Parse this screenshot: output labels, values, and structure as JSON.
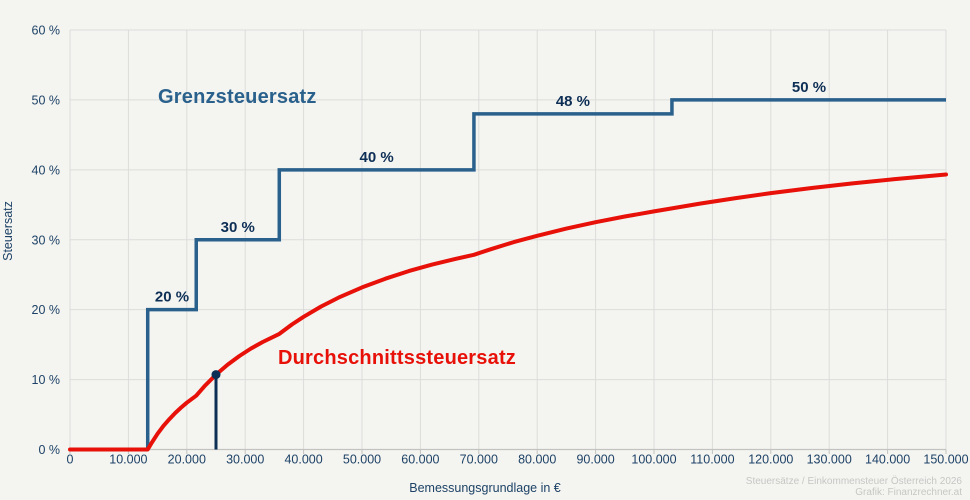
{
  "labels": {
    "marginal_series_label": "Grenzsteuersatz",
    "average_series_label": "Durchschnittssteuersatz",
    "x_axis_title": "Bemessungsgrundlage in €",
    "y_axis_title": "Steuersatz"
  },
  "footer": {
    "line1": "Steuersätze / Einkommensteuer Österreich 2026",
    "line2": "Grafik: Finanzrechner.at"
  },
  "colors": {
    "background": "#f4f4f1",
    "grid": "#dcdcda",
    "axis": "#c2c2c0",
    "tick_text": "#1d4266",
    "marginal_line": "#2a618c",
    "step_label_text": "#0e2f55",
    "average_line": "#e81109",
    "highlight": "#0e2f55"
  },
  "chart_data": {
    "type": "line",
    "xlabel": "Bemessungsgrundlage in €",
    "ylabel": "Steuersatz",
    "xlim": [
      0,
      150000
    ],
    "ylim": [
      0,
      60
    ],
    "grid": true,
    "x_ticks": [
      {
        "value": 0,
        "label": "0"
      },
      {
        "value": 10000,
        "label": "10.000"
      },
      {
        "value": 20000,
        "label": "20.000"
      },
      {
        "value": 30000,
        "label": "30.000"
      },
      {
        "value": 40000,
        "label": "40.000"
      },
      {
        "value": 50000,
        "label": "50.000"
      },
      {
        "value": 60000,
        "label": "60.000"
      },
      {
        "value": 70000,
        "label": "70.000"
      },
      {
        "value": 80000,
        "label": "80.000"
      },
      {
        "value": 90000,
        "label": "90.000"
      },
      {
        "value": 100000,
        "label": "100.000"
      },
      {
        "value": 110000,
        "label": "110.000"
      },
      {
        "value": 120000,
        "label": "120.000"
      },
      {
        "value": 130000,
        "label": "130.000"
      },
      {
        "value": 140000,
        "label": "140.000"
      },
      {
        "value": 150000,
        "label": "150.000"
      }
    ],
    "y_ticks": [
      {
        "value": 0,
        "label": "0 %"
      },
      {
        "value": 10,
        "label": "10 %"
      },
      {
        "value": 20,
        "label": "20 %"
      },
      {
        "value": 30,
        "label": "30 %"
      },
      {
        "value": 40,
        "label": "40 %"
      },
      {
        "value": 50,
        "label": "50 %"
      },
      {
        "value": 60,
        "label": "60 %"
      }
    ],
    "series": [
      {
        "name": "Grenzsteuersatz",
        "type": "step",
        "brackets": [
          {
            "from": 13308,
            "to": 21617,
            "rate": 20,
            "label": "20 %"
          },
          {
            "from": 21617,
            "to": 35836,
            "rate": 30,
            "label": "30 %"
          },
          {
            "from": 35836,
            "to": 69166,
            "rate": 40,
            "label": "40 %"
          },
          {
            "from": 69166,
            "to": 103072,
            "rate": 48,
            "label": "48 %"
          },
          {
            "from": 103072,
            "to": 150000,
            "rate": 50,
            "label": "50 %"
          }
        ]
      },
      {
        "name": "Durchschnittssteuersatz",
        "type": "line",
        "points": [
          [
            0,
            0
          ],
          [
            13308,
            0
          ],
          [
            14000,
            0.99
          ],
          [
            15000,
            2.26
          ],
          [
            16000,
            3.37
          ],
          [
            17000,
            4.34
          ],
          [
            18000,
            5.21
          ],
          [
            19000,
            5.99
          ],
          [
            20000,
            6.69
          ],
          [
            21617,
            7.69
          ],
          [
            23000,
            9.03
          ],
          [
            25000,
            10.71
          ],
          [
            27000,
            12.14
          ],
          [
            29000,
            13.37
          ],
          [
            31000,
            14.44
          ],
          [
            33000,
            15.38
          ],
          [
            35836,
            16.54
          ],
          [
            38000,
            17.88
          ],
          [
            40000,
            18.98
          ],
          [
            43000,
            20.45
          ],
          [
            46000,
            21.72
          ],
          [
            50000,
            23.19
          ],
          [
            54000,
            24.43
          ],
          [
            58000,
            25.51
          ],
          [
            62000,
            26.44
          ],
          [
            66000,
            27.26
          ],
          [
            69166,
            27.85
          ],
          [
            72000,
            28.64
          ],
          [
            76000,
            29.66
          ],
          [
            80000,
            30.57
          ],
          [
            85000,
            31.6
          ],
          [
            90000,
            32.51
          ],
          [
            95000,
            33.33
          ],
          [
            100000,
            34.06
          ],
          [
            103072,
            34.48
          ],
          [
            108000,
            35.18
          ],
          [
            114000,
            35.96
          ],
          [
            120000,
            36.67
          ],
          [
            127000,
            37.4
          ],
          [
            134000,
            38.06
          ],
          [
            141000,
            38.65
          ],
          [
            150000,
            39.33
          ]
        ]
      }
    ],
    "highlight_point": {
      "x": 25000,
      "y": 10.71
    }
  }
}
